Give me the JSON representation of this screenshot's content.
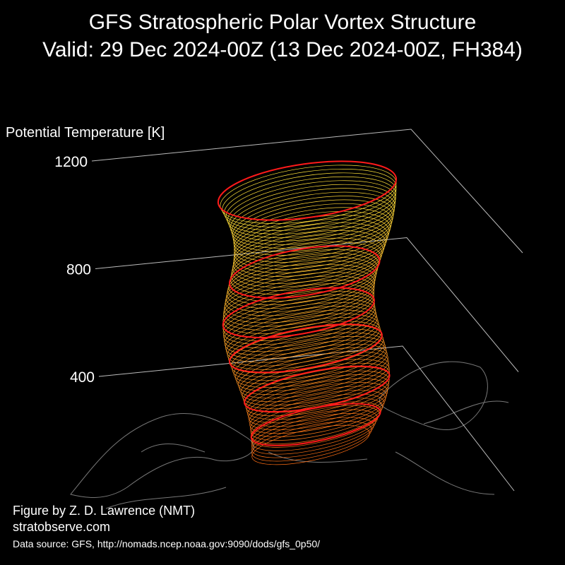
{
  "chart_data": {
    "type": "3d-structure",
    "title": "GFS Stratospheric Polar Vortex Structure",
    "subtitle": "Valid: 29 Dec 2024-00Z  (13 Dec 2024-00Z, FH384)",
    "zlabel": "Potential Temperature [K]",
    "zlim": [
      400,
      1200
    ],
    "zticks": [
      400,
      800,
      1200
    ],
    "credit": "Figure by Z. D. Lawrence (NMT)",
    "website": "stratobserve.com",
    "source": "Data source: GFS, http://nomads.ncep.noaa.gov:9090/dods/gfs_0p50/"
  }
}
